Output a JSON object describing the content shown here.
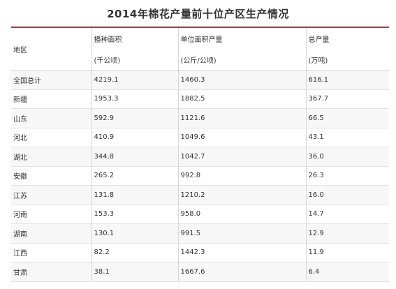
{
  "title": "2014年棉花产量前十位产区生产情况",
  "columns": {
    "region": "地区",
    "area": "播种面积",
    "area_unit": "(千公顷)",
    "yield": "单位面积产量",
    "yield_unit": "(公斤/公顷)",
    "total": "总产量",
    "total_unit": "(万吨)"
  },
  "rows": [
    {
      "region": "全国总计",
      "area": "4219.1",
      "yield": "1460.3",
      "total": "616.1"
    },
    {
      "region": "新疆",
      "area": "1953.3",
      "yield": "1882.5",
      "total": "367.7"
    },
    {
      "region": "山东",
      "area": "592.9",
      "yield": "1121.6",
      "total": "66.5"
    },
    {
      "region": "河北",
      "area": "410.9",
      "yield": "1049.6",
      "total": "43.1"
    },
    {
      "region": "湖北",
      "area": "344.8",
      "yield": "1042.7",
      "total": "36.0"
    },
    {
      "region": "安徽",
      "area": "265.2",
      "yield": "992.8",
      "total": "26.3"
    },
    {
      "region": "江苏",
      "area": "131.8",
      "yield": "1210.2",
      "total": "16.0"
    },
    {
      "region": "河南",
      "area": "153.3",
      "yield": "958.0",
      "total": "14.7"
    },
    {
      "region": "湖南",
      "area": "130.1",
      "yield": "991.5",
      "total": "12.9"
    },
    {
      "region": "江西",
      "area": "82.2",
      "yield": "1442.3",
      "total": "11.9"
    },
    {
      "region": "甘肃",
      "area": "38.1",
      "yield": "1667.6",
      "total": "6.4"
    }
  ],
  "colors": {
    "accent_rule": "#c8283a",
    "row_stripe": "#f7f7f7",
    "grid": "#d6d6d6"
  }
}
